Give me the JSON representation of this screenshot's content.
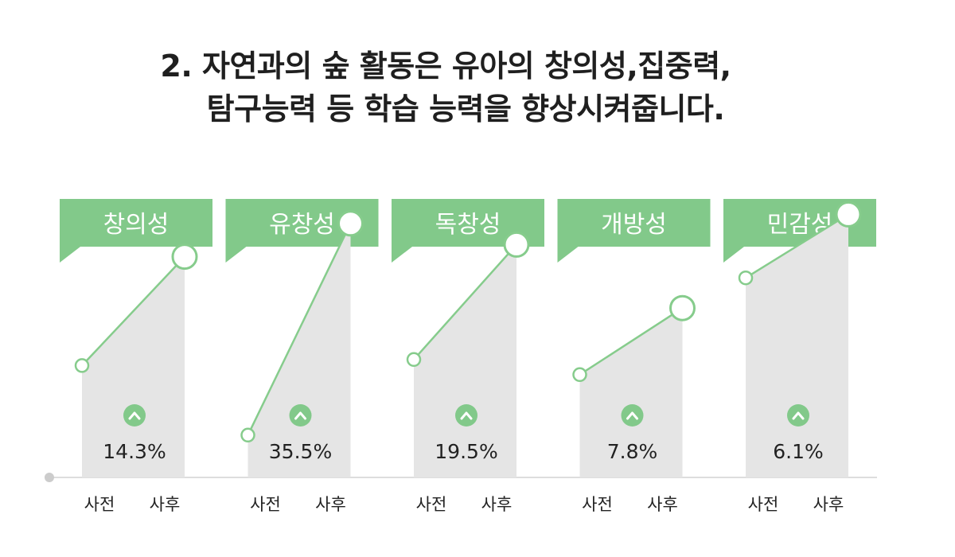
{
  "title": {
    "line1": "2. 자연과의 숲 활동은 유아의 창의성,집중력,",
    "line2": "탐구능력 등 학습 능력을 향상시켜줍니다."
  },
  "colors": {
    "accent": "#82c98a",
    "line": "#86cc8c",
    "area": "#e5e5e5",
    "axis": "#dddddd",
    "text": "#222222"
  },
  "icons": {
    "increase": "chevron-up-icon"
  },
  "chart_data": {
    "type": "line",
    "categories": [
      "사전",
      "사후"
    ],
    "panels": [
      {
        "label": "창의성",
        "change": "14.3%",
        "values": [
          37,
          73
        ]
      },
      {
        "label": "유창성",
        "change": "35.5%",
        "values": [
          14,
          84
        ]
      },
      {
        "label": "독창성",
        "change": "19.5%",
        "values": [
          39,
          77
        ]
      },
      {
        "label": "개방성",
        "change": "7.8%",
        "values": [
          34,
          56
        ]
      },
      {
        "label": "민감성",
        "change": "6.1%",
        "values": [
          66,
          87
        ]
      }
    ],
    "ylim": [
      0,
      100
    ],
    "grid": false,
    "legend": "none"
  }
}
